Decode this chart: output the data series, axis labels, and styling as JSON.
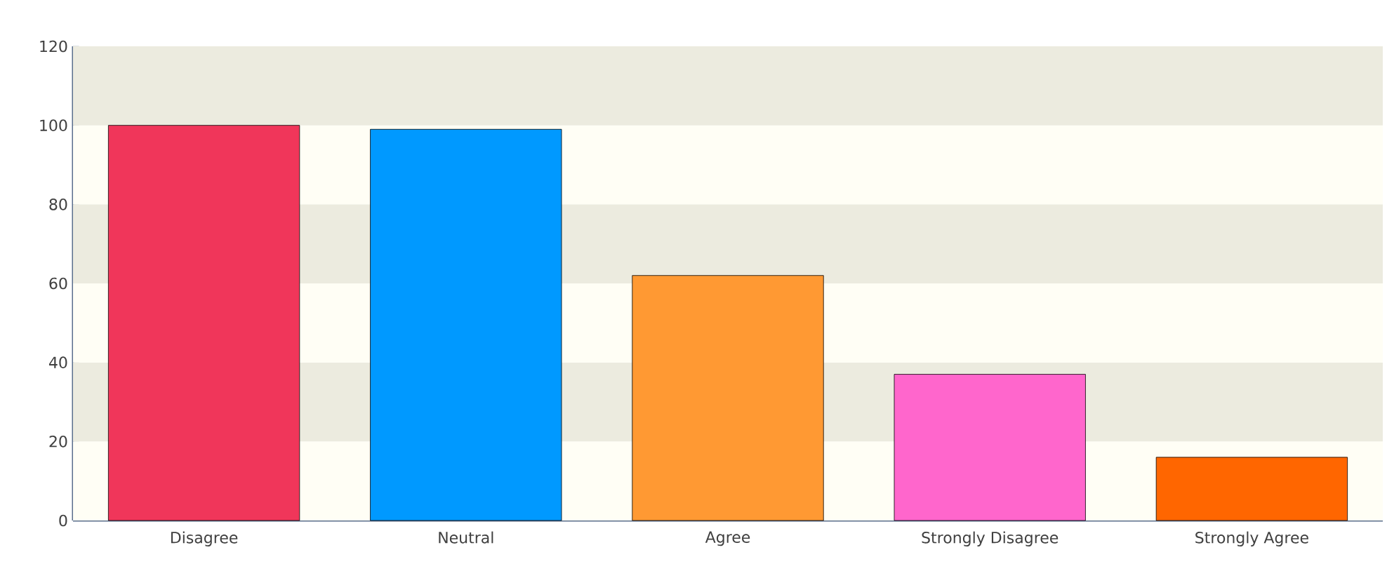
{
  "chart_data": {
    "type": "bar",
    "categories": [
      "Disagree",
      "Neutral",
      "Agree",
      "Strongly Disagree",
      "Strongly Agree"
    ],
    "values": [
      100,
      99,
      62,
      37,
      16
    ],
    "colors": [
      "#f0365a",
      "#0099ff",
      "#ff9933",
      "#ff66cc",
      "#ff6600"
    ],
    "ylim": [
      0,
      120
    ],
    "yticks": [
      0,
      20,
      40,
      60,
      80,
      100,
      120
    ]
  }
}
